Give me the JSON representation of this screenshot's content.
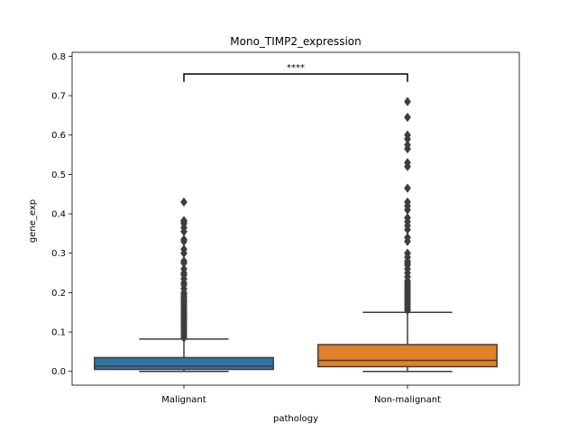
{
  "chart_data": {
    "type": "box",
    "title": "Mono_TIMP2_expression",
    "xlabel": "pathology",
    "ylabel": "gene_exp",
    "ylim": [
      -0.035,
      0.81
    ],
    "yticks": [
      0.0,
      0.1,
      0.2,
      0.3,
      0.4,
      0.5,
      0.6,
      0.7,
      0.8
    ],
    "ytick_labels": [
      "0.0",
      "0.1",
      "0.2",
      "0.3",
      "0.4",
      "0.5",
      "0.6",
      "0.7",
      "0.8"
    ],
    "categories": [
      "Malignant",
      "Non-malignant"
    ],
    "colors": [
      "#3274a1",
      "#e1812c"
    ],
    "boxes": [
      {
        "category": "Malignant",
        "whisker_low": 0.0,
        "q1": 0.005,
        "median": 0.013,
        "q3": 0.035,
        "whisker_high": 0.082,
        "outliers": [
          0.085,
          0.09,
          0.095,
          0.1,
          0.105,
          0.11,
          0.115,
          0.12,
          0.125,
          0.13,
          0.135,
          0.14,
          0.145,
          0.15,
          0.155,
          0.16,
          0.165,
          0.17,
          0.175,
          0.18,
          0.185,
          0.19,
          0.195,
          0.2,
          0.21,
          0.22,
          0.225,
          0.235,
          0.245,
          0.25,
          0.26,
          0.275,
          0.28,
          0.3,
          0.31,
          0.33,
          0.335,
          0.355,
          0.365,
          0.375,
          0.38,
          0.383,
          0.43
        ]
      },
      {
        "category": "Non-malignant",
        "whisker_low": 0.0,
        "q1": 0.012,
        "median": 0.028,
        "q3": 0.068,
        "whisker_high": 0.15,
        "outliers": [
          0.155,
          0.16,
          0.165,
          0.17,
          0.175,
          0.18,
          0.185,
          0.19,
          0.195,
          0.2,
          0.205,
          0.21,
          0.215,
          0.22,
          0.225,
          0.23,
          0.24,
          0.25,
          0.26,
          0.27,
          0.275,
          0.28,
          0.29,
          0.3,
          0.33,
          0.34,
          0.36,
          0.37,
          0.38,
          0.39,
          0.41,
          0.42,
          0.43,
          0.465,
          0.52,
          0.53,
          0.565,
          0.575,
          0.59,
          0.6,
          0.645,
          0.685
        ]
      }
    ],
    "annotation": {
      "text": "****",
      "y": 0.755,
      "tick_drop": 0.02,
      "between": [
        "Malignant",
        "Non-malignant"
      ]
    },
    "grid": false,
    "legend": "none"
  }
}
